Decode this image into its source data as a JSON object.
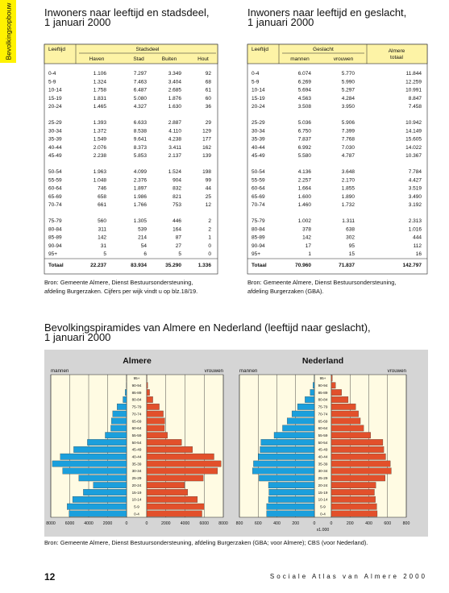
{
  "side_tab": "Bevolkingsopbouw",
  "tables": [
    {
      "title": [
        "Inwoners naar leeftijd en stadsdeel,",
        "1 januari 2000"
      ],
      "header": {
        "first": "Leeftijd",
        "group": "Stadsdeel",
        "group_columns": [
          "Haven",
          "Stad",
          "Buiten",
          "Hout"
        ]
      },
      "groups": [
        [
          [
            "0-4",
            "1.106",
            "7.297",
            "3.349",
            "92"
          ],
          [
            "5-9",
            "1.324",
            "7.463",
            "3.404",
            "68"
          ],
          [
            "10-14",
            "1.758",
            "6.487",
            "2.685",
            "61"
          ],
          [
            "15-19",
            "1.831",
            "5.080",
            "1.876",
            "60"
          ],
          [
            "20-24",
            "1.465",
            "4.327",
            "1.630",
            "36"
          ]
        ],
        [
          [
            "25-29",
            "1.393",
            "6.633",
            "2.887",
            "29"
          ],
          [
            "30-34",
            "1.372",
            "8.538",
            "4.110",
            "129"
          ],
          [
            "35-39",
            "1.549",
            "9.641",
            "4.238",
            "177"
          ],
          [
            "40-44",
            "2.076",
            "8.373",
            "3.411",
            "162"
          ],
          [
            "45-49",
            "2.238",
            "5.853",
            "2.137",
            "139"
          ]
        ],
        [
          [
            "50-54",
            "1.963",
            "4.099",
            "1.524",
            "198"
          ],
          [
            "55-59",
            "1.048",
            "2.376",
            "904",
            "99"
          ],
          [
            "60-64",
            "746",
            "1.897",
            "832",
            "44"
          ],
          [
            "65-69",
            "658",
            "1.986",
            "821",
            "25"
          ],
          [
            "70-74",
            "661",
            "1.766",
            "753",
            "12"
          ]
        ],
        [
          [
            "75-79",
            "560",
            "1.305",
            "446",
            "2"
          ],
          [
            "80-84",
            "311",
            "539",
            "164",
            "2"
          ],
          [
            "85-89",
            "142",
            "214",
            "87",
            "1"
          ],
          [
            "90-94",
            "31",
            "54",
            "27",
            "0"
          ],
          [
            "95+",
            "5",
            "6",
            "5",
            "0"
          ]
        ]
      ],
      "total": [
        "Totaal",
        "22.237",
        "83.934",
        "35.290",
        "1.336"
      ],
      "source": [
        "Bron: Gemeente Almere, Dienst Bestuursondersteuning,",
        "afdeling Burgerzaken. Cijfers per wijk vindt u op blz.18/19."
      ]
    },
    {
      "title": [
        "Inwoners naar leeftijd en geslacht,",
        "1 januari 2000"
      ],
      "header": {
        "first": "Leeftijd",
        "group": "Geslacht",
        "group_columns": [
          "mannen",
          "vrouwen"
        ],
        "extra_column": [
          "Almere",
          "totaal"
        ]
      },
      "groups": [
        [
          [
            "0-4",
            "6.074",
            "5.770",
            "11.844"
          ],
          [
            "5-9",
            "6.269",
            "5.990",
            "12.259"
          ],
          [
            "10-14",
            "5.694",
            "5.297",
            "10.991"
          ],
          [
            "15-19",
            "4.563",
            "4.284",
            "8.847"
          ],
          [
            "20-24",
            "3.508",
            "3.950",
            "7.458"
          ]
        ],
        [
          [
            "25-29",
            "5.036",
            "5.906",
            "10.942"
          ],
          [
            "30-34",
            "6.750",
            "7.399",
            "14.149"
          ],
          [
            "35-39",
            "7.837",
            "7.768",
            "15.605"
          ],
          [
            "40-44",
            "6.992",
            "7.030",
            "14.022"
          ],
          [
            "45-49",
            "5.580",
            "4.787",
            "10.367"
          ]
        ],
        [
          [
            "50-54",
            "4.136",
            "3.648",
            "7.784"
          ],
          [
            "55-59",
            "2.257",
            "2.170",
            "4.427"
          ],
          [
            "60-64",
            "1.664",
            "1.855",
            "3.519"
          ],
          [
            "65-69",
            "1.600",
            "1.890",
            "3.490"
          ],
          [
            "70-74",
            "1.460",
            "1.732",
            "3.192"
          ]
        ],
        [
          [
            "75-79",
            "1.002",
            "1.311",
            "2.313"
          ],
          [
            "80-84",
            "378",
            "638",
            "1.016"
          ],
          [
            "85-89",
            "142",
            "302",
            "444"
          ],
          [
            "90-94",
            "17",
            "95",
            "112"
          ],
          [
            "95+",
            "1",
            "15",
            "16"
          ]
        ]
      ],
      "total": [
        "Totaal",
        "70.960",
        "71.837",
        "142.797"
      ],
      "source": [
        "Bron: Gemeente Almere, Dienst Bestuursondersteuning,",
        "afdeling Burgerzaken (GBA)."
      ]
    }
  ],
  "section_title": [
    "Bevolkingspiramides van Almere en Nederland (leeftijd naar geslacht),",
    "1 januari 2000"
  ],
  "chart_data": [
    {
      "type": "pyramid",
      "title": "Almere",
      "categories": [
        "0-4",
        "5-9",
        "10-14",
        "15-19",
        "20-24",
        "25-29",
        "30-34",
        "35-39",
        "40-44",
        "45-49",
        "50-54",
        "55-59",
        "60-64",
        "65-69",
        "70-74",
        "75-79",
        "80-84",
        "85-89",
        "90-94",
        "95+"
      ],
      "series": [
        {
          "name": "mannen",
          "color": "#1b9fdc",
          "values": [
            6074,
            6269,
            5694,
            4563,
            3508,
            5036,
            6750,
            7837,
            6992,
            5580,
            4136,
            2257,
            1664,
            1600,
            1460,
            1002,
            378,
            142,
            17,
            1
          ]
        },
        {
          "name": "vrouwen",
          "color": "#e2502b",
          "values": [
            5770,
            5990,
            5297,
            4284,
            3950,
            5906,
            7399,
            7768,
            7030,
            4787,
            3648,
            2170,
            1855,
            1890,
            1732,
            1311,
            638,
            302,
            95,
            15
          ]
        }
      ],
      "xlim": [
        0,
        8000
      ],
      "xticks": [
        0,
        2000,
        4000,
        6000,
        8000
      ],
      "grid": true
    },
    {
      "type": "pyramid",
      "title": "Nederland",
      "categories": [
        "0-4",
        "5-9",
        "10-14",
        "15-19",
        "20-24",
        "25-29",
        "30-34",
        "35-39",
        "40-44",
        "45-49",
        "50-54",
        "55-59",
        "60-64",
        "65-69",
        "70-74",
        "75-79",
        "80-84",
        "85-89",
        "90-94",
        "95+"
      ],
      "series": [
        {
          "name": "mannen",
          "color": "#1b9fdc",
          "values": [
            510,
            510,
            490,
            485,
            490,
            590,
            660,
            650,
            600,
            580,
            570,
            430,
            340,
            290,
            240,
            180,
            100,
            45,
            15,
            3
          ]
        },
        {
          "name": "vrouwen",
          "color": "#e2502b",
          "values": [
            490,
            485,
            470,
            460,
            475,
            575,
            640,
            630,
            580,
            560,
            550,
            420,
            345,
            310,
            290,
            260,
            180,
            110,
            45,
            10
          ]
        }
      ],
      "xlim": [
        0,
        800
      ],
      "xticks": [
        0,
        200,
        400,
        600,
        800
      ],
      "unit_label": "x1.000",
      "grid": true
    }
  ],
  "section_source": "Bron: Gemeente Almere, Dienst Bestuursondersteuning, afdeling Burgerzaken (GBA; voor Almere); CBS (voor Nederland).",
  "footer": {
    "page": "12",
    "publication": "Sociale Atlas van Almere 2000"
  }
}
